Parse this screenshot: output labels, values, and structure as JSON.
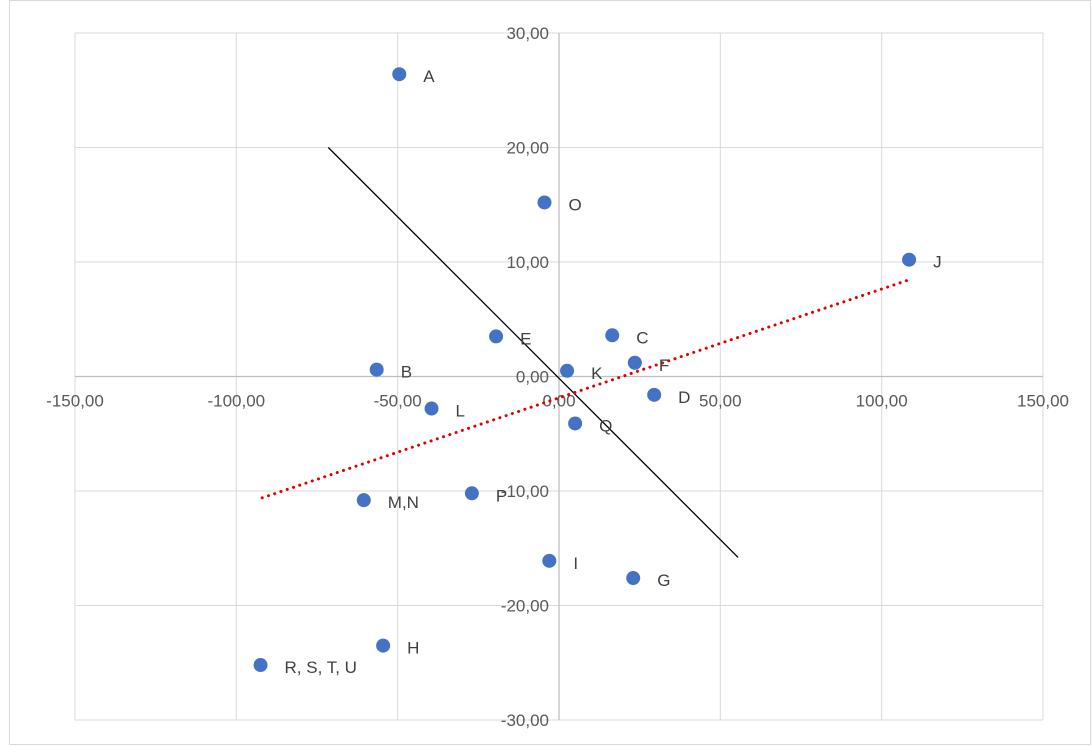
{
  "chart_data": {
    "type": "scatter",
    "title": "",
    "xlabel": "",
    "ylabel": "",
    "xlim": [
      -150,
      150
    ],
    "ylim": [
      -30,
      30
    ],
    "x_ticks": [
      -150,
      -100,
      -50,
      0,
      50,
      100,
      150
    ],
    "y_ticks": [
      -30,
      -20,
      -10,
      0,
      10,
      20,
      30
    ],
    "x_tick_labels": [
      "-150,00",
      "-100,00",
      "-50,00",
      "0,00",
      "50,00",
      "100,00",
      "150,00"
    ],
    "y_tick_labels": [
      "-30,00",
      "-20,00",
      "-10,00",
      "0,00",
      "10,00",
      "20,00",
      "30,00"
    ],
    "grid": true,
    "legend": "none",
    "marker_color": "#4472c4",
    "points": [
      {
        "label": "A",
        "x": -49.5,
        "y": 26.4
      },
      {
        "label": "B",
        "x": -56.5,
        "y": 0.6
      },
      {
        "label": "C",
        "x": 16.5,
        "y": 3.6
      },
      {
        "label": "D",
        "x": 29.5,
        "y": -1.6
      },
      {
        "label": "E",
        "x": -19.5,
        "y": 3.5
      },
      {
        "label": "F",
        "x": 23.5,
        "y": 1.2
      },
      {
        "label": "G",
        "x": 23.0,
        "y": -17.6
      },
      {
        "label": "H",
        "x": -54.5,
        "y": -23.5
      },
      {
        "label": "I",
        "x": -3.0,
        "y": -16.1
      },
      {
        "label": "J",
        "x": 108.5,
        "y": 10.2
      },
      {
        "label": "K",
        "x": 2.5,
        "y": 0.5
      },
      {
        "label": "L",
        "x": -39.5,
        "y": -2.8
      },
      {
        "label": "M,N",
        "x": -60.5,
        "y": -10.8
      },
      {
        "label": "O",
        "x": -4.5,
        "y": 15.2
      },
      {
        "label": "P",
        "x": -27.0,
        "y": -10.2
      },
      {
        "label": "Q",
        "x": 5.0,
        "y": -4.1
      },
      {
        "label": "R, S, T, U",
        "x": -92.5,
        "y": -25.2
      }
    ],
    "lines": [
      {
        "style": "solid",
        "color": "#000000",
        "from": [
          -71.5,
          20.0
        ],
        "to": [
          55.5,
          -15.8
        ]
      },
      {
        "style": "dotted",
        "color": "#e00000",
        "from": [
          -92,
          -10.6
        ],
        "to": [
          108,
          8.4
        ]
      }
    ]
  }
}
